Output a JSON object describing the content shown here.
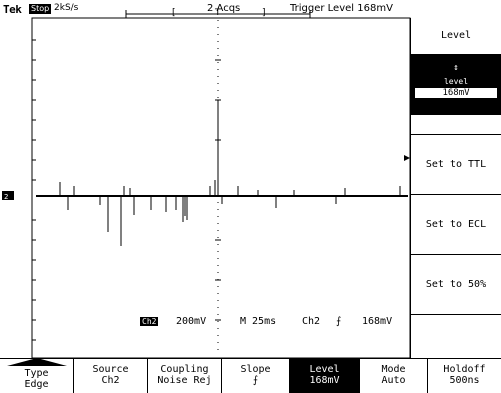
{
  "status_bar": {
    "logo": "Tek",
    "run_state": "Stop",
    "sample_rate": "2kS/s",
    "acquisitions": "2 Acqs",
    "trigger_level": "Trigger Level  168mV"
  },
  "right_menu": {
    "title": "Level",
    "level_value_top": "↕",
    "level_value_label": "level",
    "level_value": "168mV",
    "set_ttl": "Set to TTL",
    "set_ecl": "Set to ECL",
    "set_50": "Set to 50%"
  },
  "readout": {
    "channel": "Ch2",
    "volts_div": "200mV",
    "timebase": "M  25ms",
    "trig_channel": "Ch2",
    "trig_slope": "⨍",
    "trig_level": "168mV"
  },
  "bottom_menu": [
    {
      "line1": "Type",
      "line2": "Edge"
    },
    {
      "line1": "Source",
      "line2": "Ch2"
    },
    {
      "line1": "Coupling",
      "line2": "Noise Rej"
    },
    {
      "line1": "Slope",
      "line2": "⨍"
    },
    {
      "line1": "Level",
      "line2": "168mV"
    },
    {
      "line1": "Mode",
      "line2": "Auto"
    },
    {
      "line1": "Holdoff",
      "line2": "500ns"
    }
  ],
  "colors": {
    "background": "#ffffff",
    "foreground": "#000000"
  }
}
